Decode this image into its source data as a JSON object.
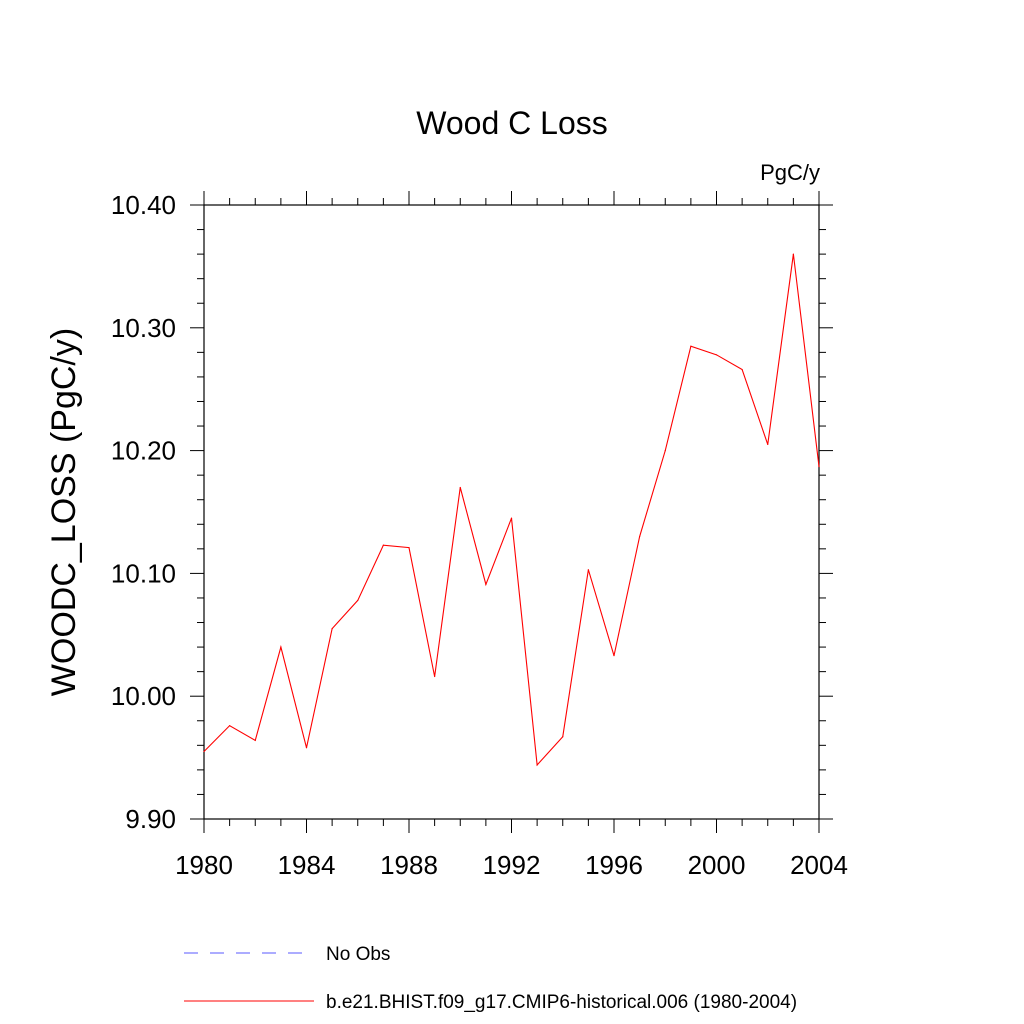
{
  "chart_data": {
    "type": "line",
    "title": "Wood C Loss",
    "units": "PgC/y",
    "xlabel": "",
    "ylabel": "WOODC_LOSS  (PgC/y)",
    "xlim": [
      1980,
      2004
    ],
    "ylim": [
      9.9,
      10.4
    ],
    "x_ticks": [
      "1980",
      "1984",
      "1988",
      "1992",
      "1996",
      "2000",
      "2004"
    ],
    "y_ticks": [
      "9.90",
      "10.00",
      "10.10",
      "10.20",
      "10.30",
      "10.40"
    ],
    "grid": false,
    "legend_position": "bottom",
    "series": [
      {
        "name": "b.e21.BHIST.f09_g17.CMIP6-historical.006 (1980-2004)",
        "color": "#ff0000",
        "style": "solid",
        "x": [
          1980,
          1981,
          1982,
          1983,
          1984,
          1985,
          1986,
          1987,
          1988,
          1989,
          1990,
          1991,
          1992,
          1993,
          1994,
          1995,
          1996,
          1997,
          1998,
          1999,
          2000,
          2001,
          2002,
          2003,
          2004
        ],
        "values": [
          9.955,
          9.976,
          9.964,
          10.04,
          9.958,
          10.055,
          10.078,
          10.123,
          10.121,
          10.016,
          10.17,
          10.091,
          10.145,
          9.944,
          9.967,
          10.103,
          10.033,
          10.13,
          10.2,
          10.285,
          10.278,
          10.266,
          10.205,
          10.36,
          10.187
        ]
      }
    ],
    "legend": [
      {
        "label": "No Obs",
        "color": "#5a5aff",
        "style": "dashed"
      },
      {
        "label": "b.e21.BHIST.f09_g17.CMIP6-historical.006 (1980-2004)",
        "color": "#ff0000",
        "style": "solid"
      }
    ]
  }
}
